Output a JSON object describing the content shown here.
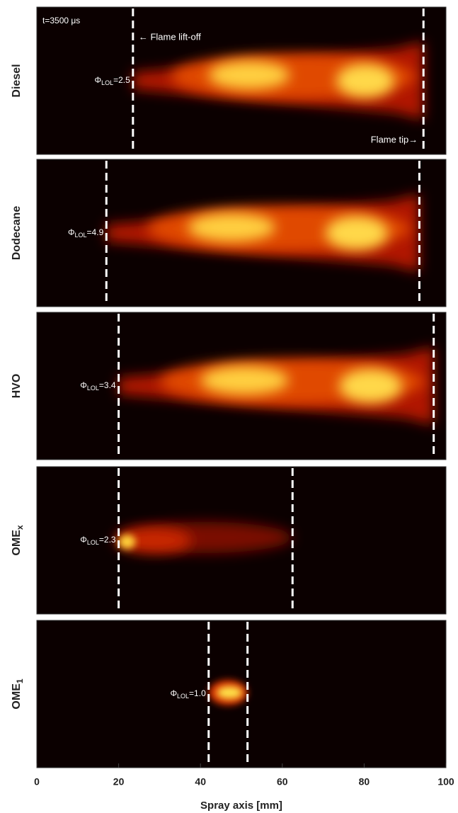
{
  "chart_data": {
    "type": "image-panels",
    "xlabel": "Spray axis [mm]",
    "xlim": [
      0,
      100
    ],
    "xticks": [
      0,
      20,
      40,
      60,
      80,
      100
    ],
    "time_label": "t=3500 μs",
    "lift_off_label": "← Flame lift-off",
    "tip_label": "Flame tip→",
    "panels": [
      {
        "name": "Diesel",
        "phi_symbol": "Φ",
        "phi_sub": "LOL",
        "phi_text": "=2.5",
        "lift_off": 23.5,
        "flame_tip": 94.5
      },
      {
        "name": "Dodecane",
        "phi_symbol": "Φ",
        "phi_sub": "LOL",
        "phi_text": "=4.9",
        "lift_off": 17,
        "flame_tip": 93.5
      },
      {
        "name": "HVO",
        "phi_symbol": "Φ",
        "phi_sub": "LOL",
        "phi_text": "=3.4",
        "lift_off": 20,
        "flame_tip": 97
      },
      {
        "name": "OME",
        "name_sub": "x",
        "phi_symbol": "Φ",
        "phi_sub": "LOL",
        "phi_text": "=2.3",
        "lift_off": 20,
        "flame_tip": 62.5
      },
      {
        "name": "OME",
        "name_sub": "1",
        "phi_symbol": "Φ",
        "phi_sub": "LOL",
        "phi_text": "=1.0",
        "lift_off": 42,
        "flame_tip": 51.5
      }
    ]
  }
}
